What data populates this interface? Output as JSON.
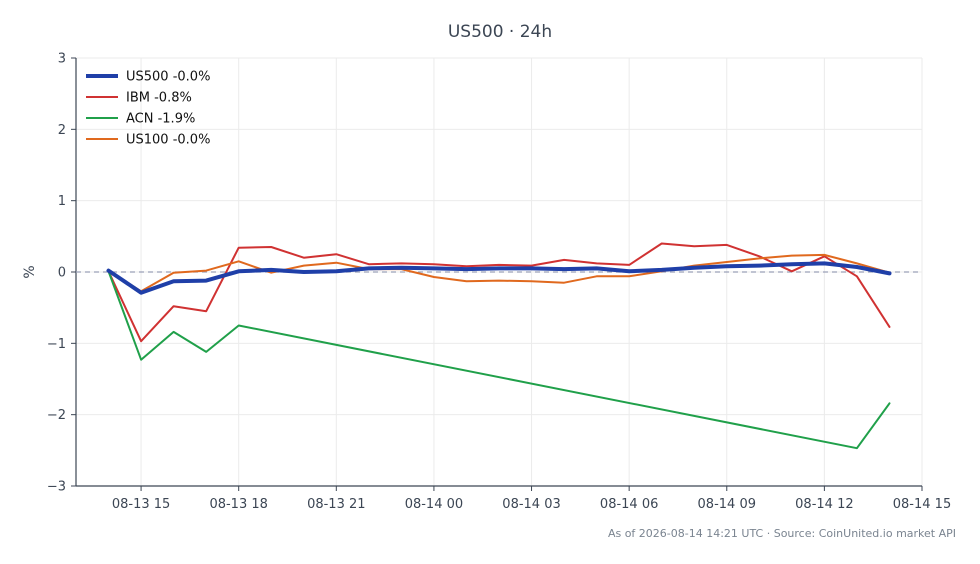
{
  "chart_data": {
    "type": "line",
    "title": "US500 · 24h",
    "ylabel": "%",
    "xlabel": "",
    "ylim": [
      -3,
      3
    ],
    "yticks": [
      -3,
      -2,
      -1,
      0,
      1,
      2,
      3
    ],
    "ytick_labels": [
      "−3",
      "−2",
      "−1",
      "0",
      "1",
      "2",
      "3"
    ],
    "xlim": [
      "2026-08-13 13:00",
      "2026-08-14 15:00"
    ],
    "xticks": [
      "2026-08-13 15:00",
      "2026-08-13 18:00",
      "2026-08-13 21:00",
      "2026-08-14 00:00",
      "2026-08-14 03:00",
      "2026-08-14 06:00",
      "2026-08-14 09:00",
      "2026-08-14 12:00",
      "2026-08-14 15:00"
    ],
    "xtick_labels": [
      "08-13 15",
      "08-13 18",
      "08-13 21",
      "08-14 00",
      "08-14 03",
      "08-14 06",
      "08-14 09",
      "08-14 12",
      "08-14 15"
    ],
    "grid": true,
    "reference_line": 0,
    "legend_position": "top-left",
    "series": [
      {
        "name": "US500 -0.0%",
        "color": "#1f3fa8",
        "emphasis": true,
        "x": [
          "2026-08-13 14:00",
          "2026-08-13 15:00",
          "2026-08-13 16:00",
          "2026-08-13 17:00",
          "2026-08-13 18:00",
          "2026-08-13 19:00",
          "2026-08-13 20:00",
          "2026-08-13 21:00",
          "2026-08-13 22:00",
          "2026-08-13 23:00",
          "2026-08-14 00:00",
          "2026-08-14 01:00",
          "2026-08-14 02:00",
          "2026-08-14 03:00",
          "2026-08-14 04:00",
          "2026-08-14 05:00",
          "2026-08-14 06:00",
          "2026-08-14 07:00",
          "2026-08-14 08:00",
          "2026-08-14 09:00",
          "2026-08-14 10:00",
          "2026-08-14 11:00",
          "2026-08-14 12:00",
          "2026-08-14 13:00",
          "2026-08-14 14:00"
        ],
        "values": [
          0.02,
          -0.29,
          -0.13,
          -0.12,
          0.01,
          0.03,
          0.0,
          0.01,
          0.05,
          0.06,
          0.05,
          0.04,
          0.05,
          0.05,
          0.04,
          0.05,
          0.01,
          0.03,
          0.06,
          0.08,
          0.09,
          0.11,
          0.12,
          0.07,
          -0.02
        ]
      },
      {
        "name": "IBM -0.8%",
        "color": "#d03232",
        "x": [
          "2026-08-13 14:00",
          "2026-08-13 15:00",
          "2026-08-13 16:00",
          "2026-08-13 17:00",
          "2026-08-13 18:00",
          "2026-08-13 19:00",
          "2026-08-13 20:00",
          "2026-08-13 21:00",
          "2026-08-13 22:00",
          "2026-08-13 23:00",
          "2026-08-14 00:00",
          "2026-08-14 01:00",
          "2026-08-14 02:00",
          "2026-08-14 03:00",
          "2026-08-14 04:00",
          "2026-08-14 05:00",
          "2026-08-14 06:00",
          "2026-08-14 07:00",
          "2026-08-14 08:00",
          "2026-08-14 09:00",
          "2026-08-14 10:00",
          "2026-08-14 11:00",
          "2026-08-14 12:00",
          "2026-08-14 13:00",
          "2026-08-14 14:00"
        ],
        "values": [
          0.01,
          -0.97,
          -0.48,
          -0.55,
          0.34,
          0.35,
          0.2,
          0.25,
          0.11,
          0.12,
          0.11,
          0.08,
          0.1,
          0.09,
          0.17,
          0.12,
          0.1,
          0.4,
          0.36,
          0.38,
          0.22,
          0.01,
          0.22,
          -0.06,
          -0.77
        ]
      },
      {
        "name": "ACN -1.9%",
        "color": "#20a04a",
        "x": [
          "2026-08-13 14:00",
          "2026-08-13 15:00",
          "2026-08-13 16:00",
          "2026-08-13 17:00",
          "2026-08-13 18:00",
          "2026-08-14 13:00",
          "2026-08-14 14:00"
        ],
        "values": [
          0.01,
          -1.23,
          -0.84,
          -1.12,
          -0.75,
          -2.47,
          -1.84
        ]
      },
      {
        "name": "US100 -0.0%",
        "color": "#e0691e",
        "x": [
          "2026-08-13 14:00",
          "2026-08-13 15:00",
          "2026-08-13 16:00",
          "2026-08-13 17:00",
          "2026-08-13 18:00",
          "2026-08-13 19:00",
          "2026-08-13 20:00",
          "2026-08-13 21:00",
          "2026-08-13 22:00",
          "2026-08-13 23:00",
          "2026-08-14 00:00",
          "2026-08-14 01:00",
          "2026-08-14 02:00",
          "2026-08-14 03:00",
          "2026-08-14 04:00",
          "2026-08-14 05:00",
          "2026-08-14 06:00",
          "2026-08-14 07:00",
          "2026-08-14 08:00",
          "2026-08-14 09:00",
          "2026-08-14 10:00",
          "2026-08-14 11:00",
          "2026-08-14 12:00",
          "2026-08-14 13:00",
          "2026-08-14 14:00"
        ],
        "values": [
          0.02,
          -0.27,
          -0.01,
          0.02,
          0.15,
          -0.01,
          0.09,
          0.13,
          0.04,
          0.04,
          -0.07,
          -0.13,
          -0.12,
          -0.13,
          -0.15,
          -0.06,
          -0.06,
          0.01,
          0.09,
          0.14,
          0.19,
          0.23,
          0.24,
          0.12,
          -0.01
        ]
      }
    ]
  },
  "footer": {
    "text": "As of 2026-08-14 14:21 UTC · Source: CoinUnited.io market API"
  }
}
